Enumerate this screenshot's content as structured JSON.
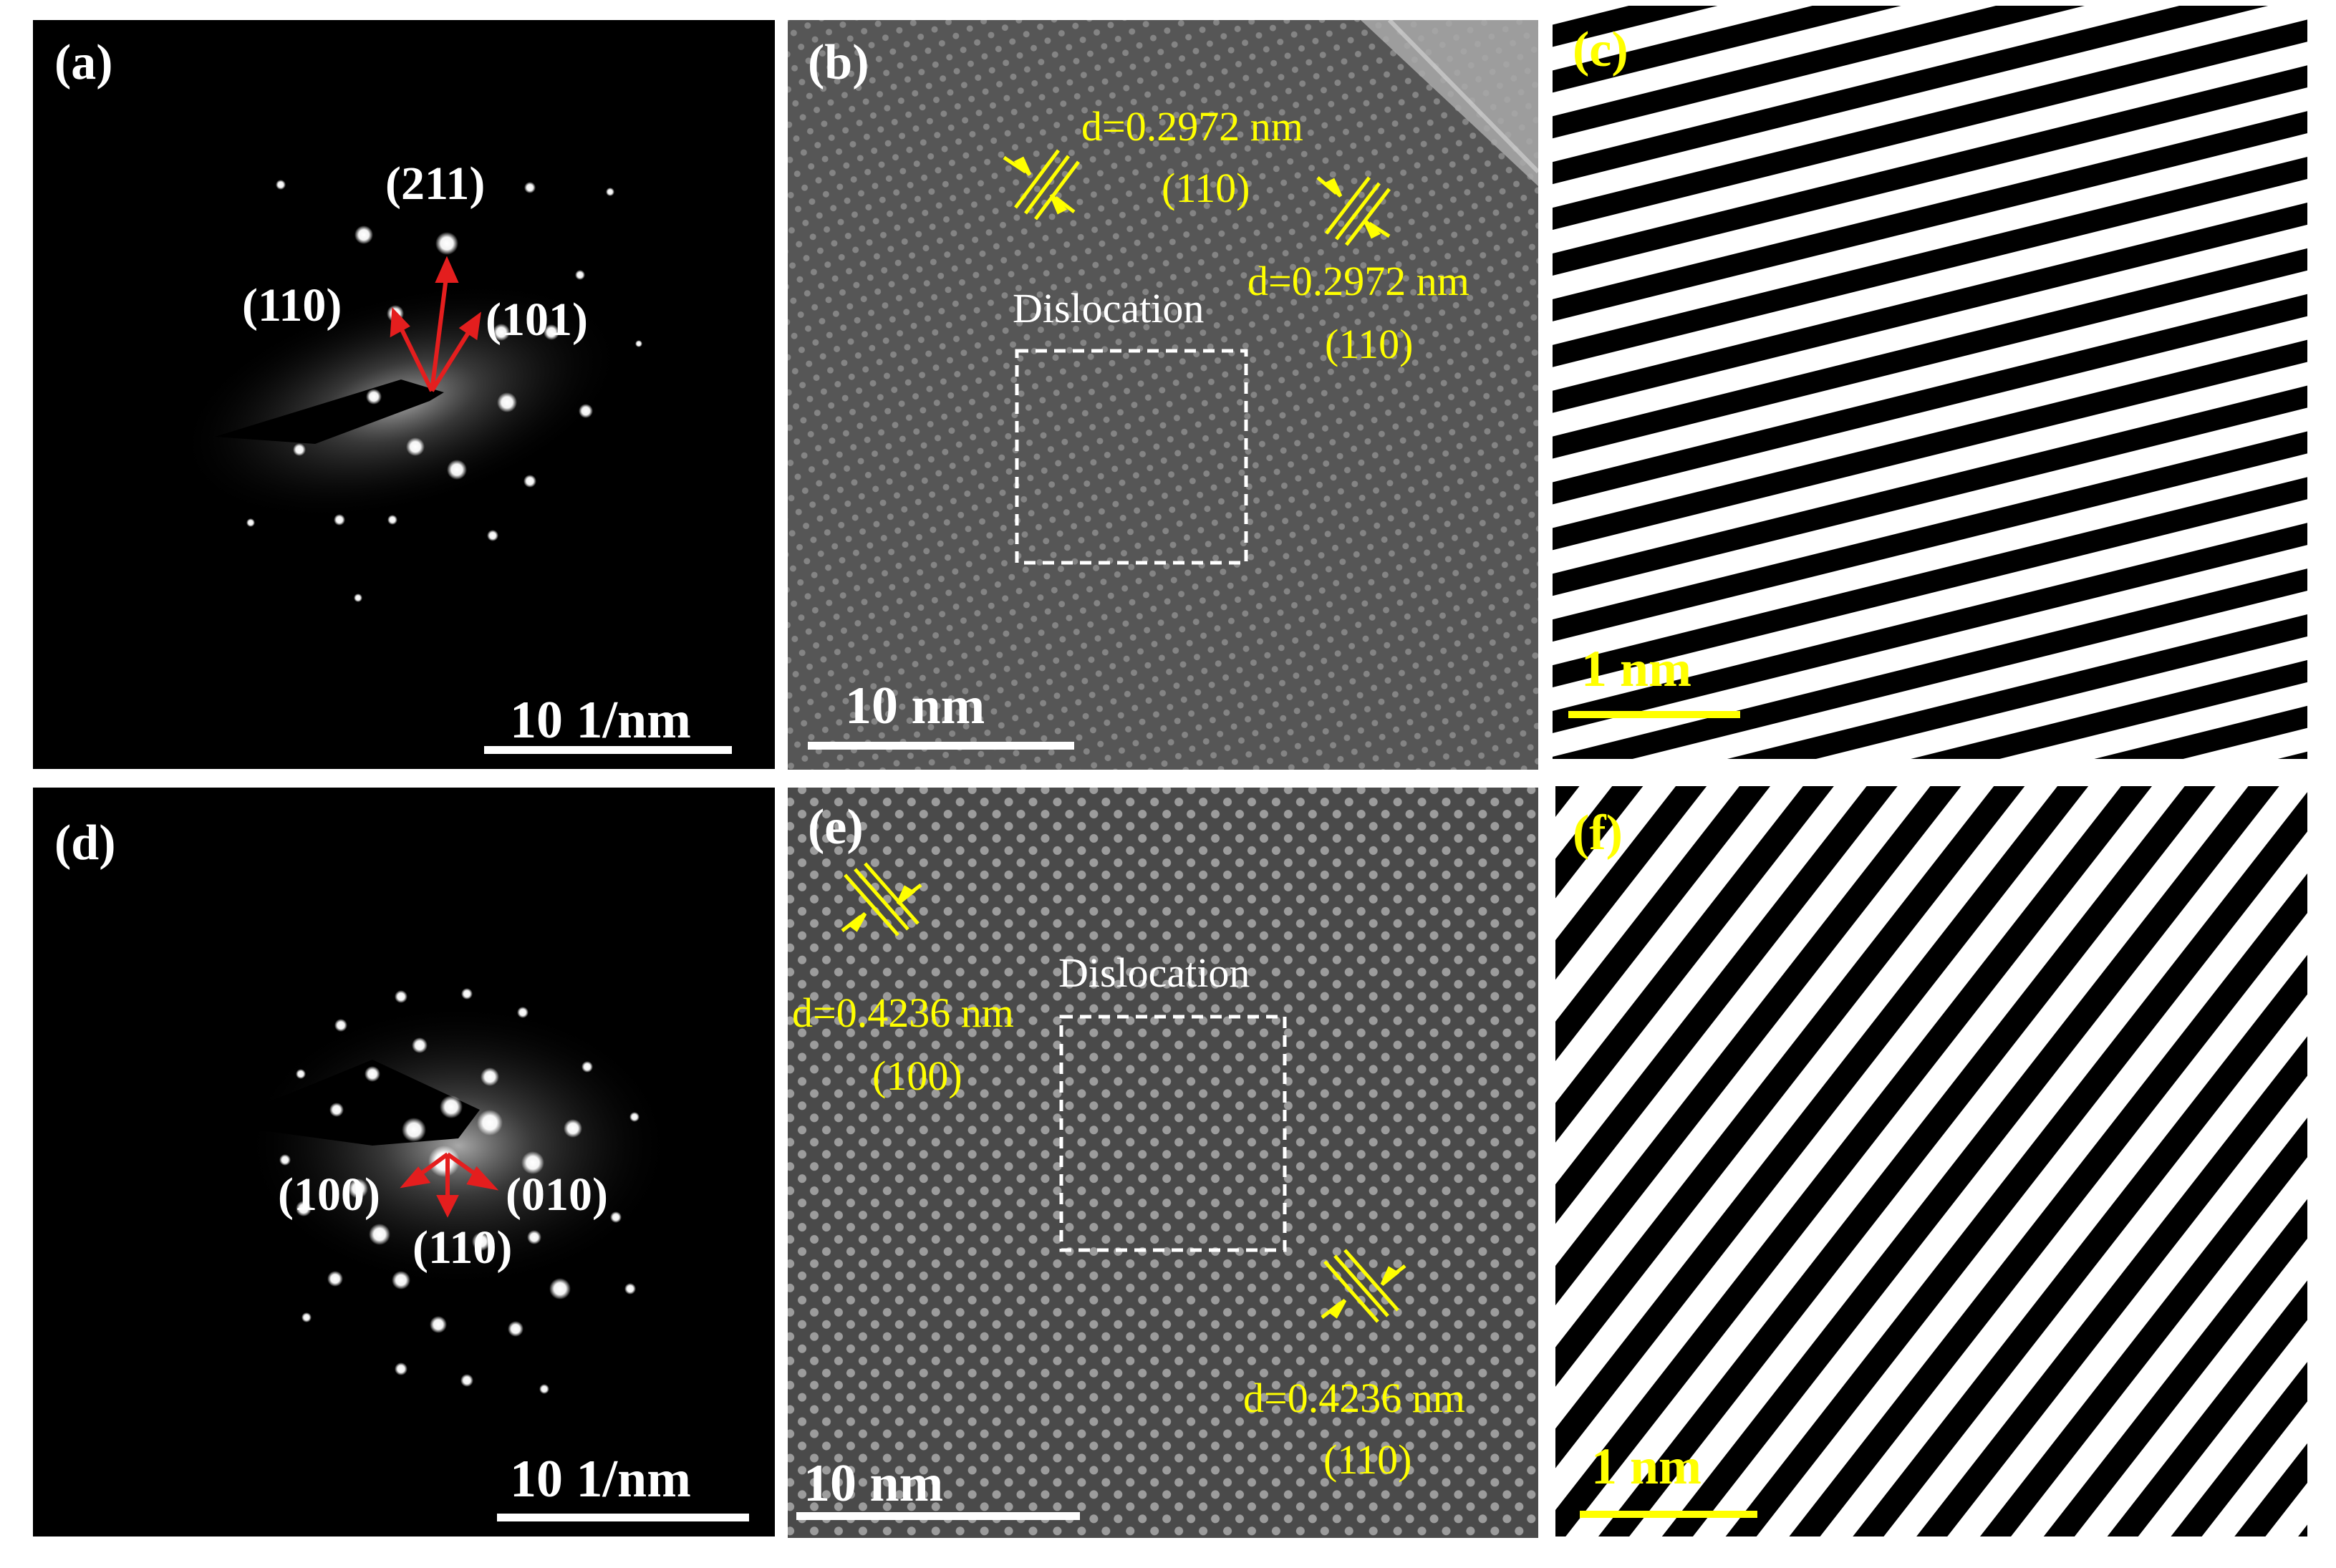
{
  "panels": {
    "a": {
      "label": "(a)",
      "spot_labels": [
        "(211)",
        "(110)",
        "(101)"
      ],
      "scale_bar": "10 1/nm"
    },
    "b": {
      "label": "(b)",
      "annotations": [
        {
          "d": "d=0.2972 nm",
          "plane": "(110)"
        },
        {
          "d": "d=0.2972 nm",
          "plane": "(110)"
        }
      ],
      "dislocation_label": "Dislocation",
      "scale_bar": "10 nm"
    },
    "c": {
      "label": "(c)",
      "scale_bar": "1 nm"
    },
    "d": {
      "label": "(d)",
      "spot_labels": [
        "(100)",
        "(010)",
        "(110)"
      ],
      "scale_bar": "10 1/nm"
    },
    "e": {
      "label": "(e)",
      "annotations": [
        {
          "d": "d=0.4236 nm",
          "plane": "(100)"
        },
        {
          "d": "d=0.4236 nm",
          "plane": "(110)"
        }
      ],
      "dislocation_label": "Dislocation",
      "scale_bar": "10 nm"
    },
    "f": {
      "label": "(f)",
      "scale_bar": "1 nm"
    }
  },
  "colors": {
    "annotation_yellow": "#ffff00",
    "arrow_red": "#e41e1e",
    "label_white": "#ffffff",
    "background_black": "#000000",
    "hrtem_gray": "#555555"
  }
}
